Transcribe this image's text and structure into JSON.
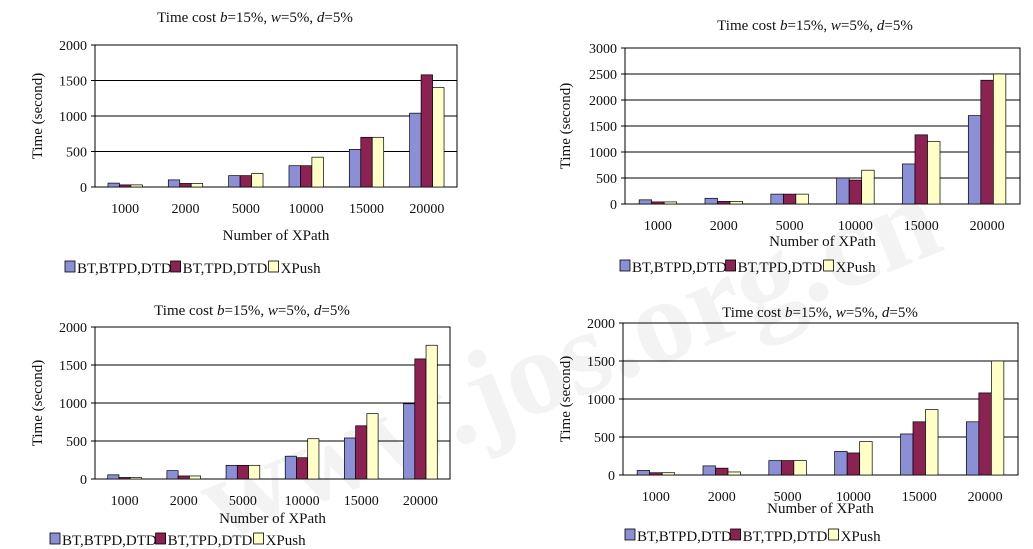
{
  "watermark": "www.jos.org.cn",
  "chart_data": [
    {
      "type": "bar",
      "title": {
        "prefix": "Time cost ",
        "b": "b",
        "bval": "=15%, ",
        "w": "w",
        "wval": "=5%, ",
        "d": "d",
        "dval": "=5%"
      },
      "xlabel": "Number of XPath",
      "ylabel": "Time (second)",
      "ylim": [
        0,
        2000
      ],
      "yticks": [
        0,
        500,
        1000,
        1500,
        2000
      ],
      "grid": true,
      "categories": [
        "1000",
        "2000",
        "5000",
        "10000",
        "15000",
        "20000"
      ],
      "series": [
        {
          "name": "BT,BTPD,DTD",
          "color": "#8a8fd6",
          "values": [
            55,
            100,
            160,
            300,
            530,
            1040
          ]
        },
        {
          "name": "BT,TPD,DTD",
          "color": "#8b2252",
          "values": [
            30,
            50,
            160,
            300,
            700,
            1580
          ]
        },
        {
          "name": "XPush",
          "color": "#ffffc8",
          "values": [
            30,
            50,
            190,
            420,
            700,
            1400
          ]
        }
      ]
    },
    {
      "type": "bar",
      "title": {
        "prefix": "Time cost ",
        "b": "b",
        "bval": "=15%, ",
        "w": "w",
        "wval": "=5%, ",
        "d": "d",
        "dval": "=5%"
      },
      "xlabel": "Number of XPath",
      "ylabel": "Time (second)",
      "ylim": [
        0,
        3000
      ],
      "yticks": [
        0,
        500,
        1000,
        1500,
        2000,
        2500,
        3000
      ],
      "grid": true,
      "categories": [
        "1000",
        "2000",
        "5000",
        "10000",
        "15000",
        "20000"
      ],
      "series": [
        {
          "name": "BT,BTPD,DTD",
          "color": "#8a8fd6",
          "values": [
            80,
            110,
            190,
            500,
            770,
            1700
          ]
        },
        {
          "name": "BT,TPD,DTD",
          "color": "#8b2252",
          "values": [
            40,
            50,
            190,
            460,
            1330,
            2380
          ]
        },
        {
          "name": "XPush",
          "color": "#ffffc8",
          "values": [
            40,
            50,
            190,
            650,
            1200,
            2500
          ]
        }
      ]
    },
    {
      "type": "bar",
      "title": {
        "prefix": "Time cost ",
        "b": "b",
        "bval": "=15%, ",
        "w": "w",
        "wval": "=5%, ",
        "d": "d",
        "dval": "=5%"
      },
      "xlabel": "Number of XPath",
      "ylabel": "Time (second)",
      "ylim": [
        0,
        2000
      ],
      "yticks": [
        0,
        500,
        1000,
        1500,
        2000
      ],
      "grid": true,
      "categories": [
        "1000",
        "2000",
        "5000",
        "10000",
        "15000",
        "20000"
      ],
      "series": [
        {
          "name": "BT,BTPD,DTD",
          "color": "#8a8fd6",
          "values": [
            55,
            110,
            180,
            300,
            540,
            990
          ]
        },
        {
          "name": "BT,TPD,DTD",
          "color": "#8b2252",
          "values": [
            20,
            40,
            180,
            280,
            700,
            1580
          ]
        },
        {
          "name": "XPush",
          "color": "#ffffc8",
          "values": [
            20,
            40,
            180,
            530,
            860,
            1760
          ]
        }
      ]
    },
    {
      "type": "bar",
      "title": {
        "prefix": "Time cost ",
        "b": "b",
        "bval": "=15%, ",
        "w": "w",
        "wval": "=5%, ",
        "d": "d",
        "dval": "=5%"
      },
      "xlabel": "Number of XPath",
      "ylabel": "Time (second)",
      "ylim": [
        0,
        2000
      ],
      "yticks": [
        0,
        500,
        1000,
        1500,
        2000
      ],
      "grid": true,
      "categories": [
        "1000",
        "2000",
        "5000",
        "10000",
        "15000",
        "20000"
      ],
      "series": [
        {
          "name": "BT,BTPD,DTD",
          "color": "#8a8fd6",
          "values": [
            60,
            120,
            190,
            310,
            540,
            700
          ]
        },
        {
          "name": "BT,TPD,DTD",
          "color": "#8b2252",
          "values": [
            30,
            90,
            190,
            290,
            700,
            1080
          ]
        },
        {
          "name": "XPush",
          "color": "#ffffc8",
          "values": [
            30,
            40,
            190,
            440,
            860,
            1500
          ]
        }
      ]
    }
  ]
}
